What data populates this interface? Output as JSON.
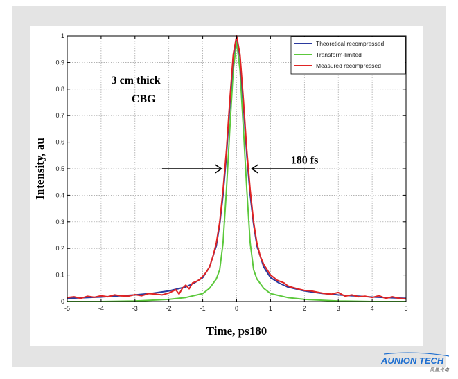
{
  "chart_data": {
    "type": "line",
    "xlabel": "Time, ps180",
    "ylabel": "Intensity, au",
    "xlim": [
      -5,
      5
    ],
    "ylim": [
      0,
      1
    ],
    "x_ticks": [
      "-5",
      "-4",
      "-3",
      "-2",
      "-1",
      "0",
      "1",
      "2",
      "3",
      "4",
      "5"
    ],
    "y_ticks": [
      "0",
      "0.1",
      "0.2",
      "0.3",
      "0.4",
      "0.5",
      "0.6",
      "0.7",
      "0.8",
      "0.9",
      "1"
    ],
    "grid": true,
    "legend_position": "top-right",
    "series": [
      {
        "name": "Theoretical recompressed",
        "color": "#2b3a9e",
        "x": [
          -5,
          -4,
          -3,
          -2.5,
          -2,
          -1.5,
          -1.25,
          -1,
          -0.8,
          -0.6,
          -0.5,
          -0.4,
          -0.3,
          -0.2,
          -0.1,
          0,
          0.1,
          0.2,
          0.3,
          0.4,
          0.5,
          0.6,
          0.8,
          1,
          1.25,
          1.5,
          2,
          2.5,
          3,
          4,
          5
        ],
        "y": [
          0.012,
          0.017,
          0.025,
          0.031,
          0.04,
          0.055,
          0.07,
          0.09,
          0.13,
          0.21,
          0.29,
          0.4,
          0.55,
          0.74,
          0.92,
          1.0,
          0.92,
          0.74,
          0.55,
          0.4,
          0.29,
          0.21,
          0.13,
          0.09,
          0.07,
          0.055,
          0.04,
          0.031,
          0.025,
          0.017,
          0.012
        ]
      },
      {
        "name": "Transform-limited",
        "color": "#5cc83c",
        "x": [
          -5,
          -4,
          -3,
          -2,
          -1.5,
          -1,
          -0.8,
          -0.6,
          -0.5,
          -0.4,
          -0.3,
          -0.2,
          -0.1,
          0,
          0.1,
          0.2,
          0.3,
          0.4,
          0.5,
          0.6,
          0.8,
          1,
          1.5,
          2,
          3,
          4,
          5
        ],
        "y": [
          0.0,
          0.0,
          0.002,
          0.008,
          0.015,
          0.03,
          0.05,
          0.085,
          0.12,
          0.22,
          0.42,
          0.65,
          0.87,
          0.98,
          0.87,
          0.65,
          0.42,
          0.22,
          0.12,
          0.085,
          0.05,
          0.03,
          0.015,
          0.008,
          0.002,
          0.0,
          0.0
        ]
      },
      {
        "name": "Measured recompressed",
        "color": "#e02424",
        "x": [
          -5,
          -4.8,
          -4.6,
          -4.4,
          -4.2,
          -4,
          -3.8,
          -3.6,
          -3.4,
          -3.2,
          -3,
          -2.8,
          -2.6,
          -2.4,
          -2.2,
          -2,
          -1.9,
          -1.8,
          -1.7,
          -1.6,
          -1.5,
          -1.4,
          -1.3,
          -1.2,
          -1.1,
          -1,
          -0.9,
          -0.8,
          -0.7,
          -0.6,
          -0.5,
          -0.4,
          -0.3,
          -0.2,
          -0.1,
          0,
          0.1,
          0.2,
          0.3,
          0.4,
          0.5,
          0.6,
          0.7,
          0.8,
          0.9,
          1,
          1.1,
          1.2,
          1.3,
          1.4,
          1.5,
          1.6,
          1.8,
          2,
          2.2,
          2.4,
          2.6,
          2.8,
          3,
          3.2,
          3.4,
          3.6,
          3.8,
          4,
          4.2,
          4.4,
          4.6,
          4.8,
          5
        ],
        "y": [
          0.015,
          0.018,
          0.012,
          0.02,
          0.016,
          0.022,
          0.018,
          0.025,
          0.021,
          0.02,
          0.026,
          0.022,
          0.03,
          0.028,
          0.025,
          0.032,
          0.038,
          0.045,
          0.028,
          0.05,
          0.062,
          0.048,
          0.07,
          0.075,
          0.082,
          0.095,
          0.11,
          0.13,
          0.17,
          0.22,
          0.3,
          0.42,
          0.57,
          0.76,
          0.93,
          1.0,
          0.93,
          0.76,
          0.57,
          0.42,
          0.3,
          0.22,
          0.17,
          0.14,
          0.12,
          0.1,
          0.09,
          0.08,
          0.075,
          0.07,
          0.06,
          0.055,
          0.048,
          0.042,
          0.04,
          0.035,
          0.03,
          0.028,
          0.034,
          0.02,
          0.025,
          0.018,
          0.02,
          0.015,
          0.022,
          0.012,
          0.018,
          0.012,
          0.01
        ]
      }
    ],
    "annotations": [
      {
        "text": "3 cm thick",
        "x": -3.7,
        "y": 0.82
      },
      {
        "text": "CBG",
        "x": -3.1,
        "y": 0.75
      },
      {
        "text": "180 fs",
        "x": 1.6,
        "y": 0.52
      }
    ],
    "arrows": [
      {
        "from_x": -2.2,
        "to_x": -0.45,
        "y": 0.5
      },
      {
        "from_x": 2.3,
        "to_x": 0.45,
        "y": 0.5
      }
    ]
  },
  "logo": {
    "name": "AUNION TECH",
    "subtitle": "昊量光电",
    "color": "#1e6fd0"
  }
}
